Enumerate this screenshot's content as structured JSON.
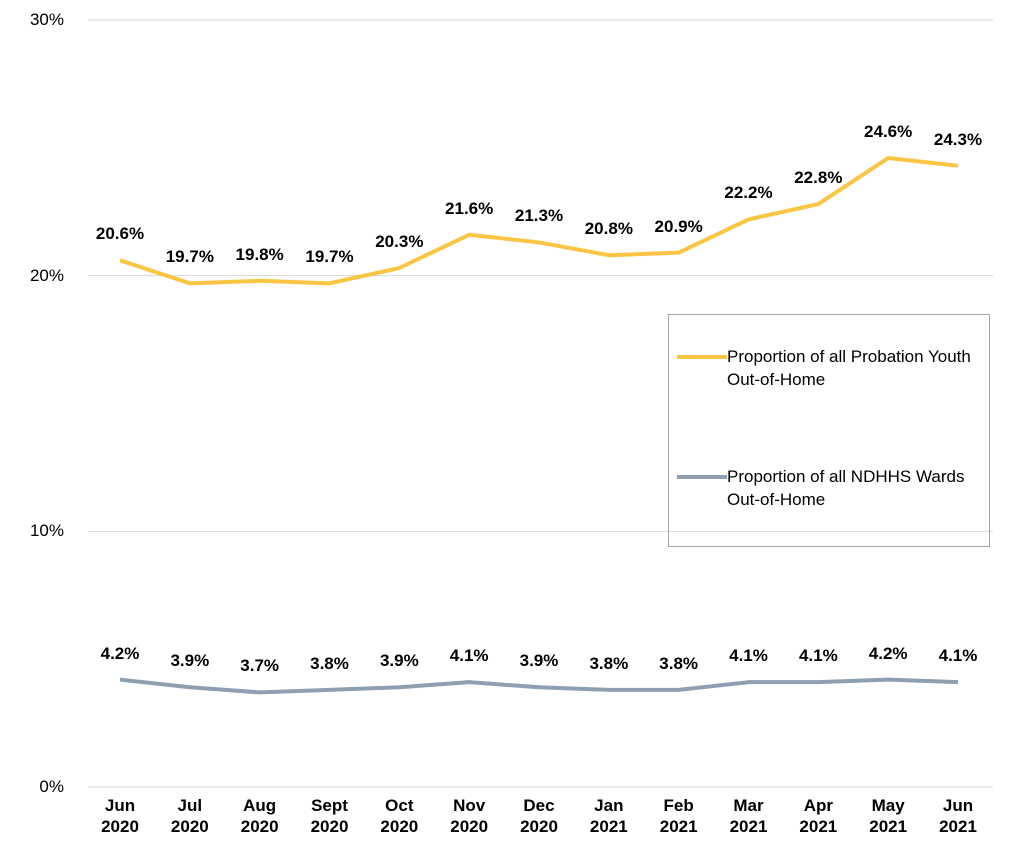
{
  "chart_data": {
    "type": "line",
    "categories": [
      "Jun 2020",
      "Jul 2020",
      "Aug 2020",
      "Sept 2020",
      "Oct 2020",
      "Nov 2020",
      "Dec 2020",
      "Jan 2021",
      "Feb 2021",
      "Mar 2021",
      "Apr 2021",
      "May 2021",
      "Jun 2021"
    ],
    "series": [
      {
        "name": "Proportion of all Probation Youth Out-of-Home",
        "color": "#f9c543",
        "values": [
          20.6,
          19.7,
          19.8,
          19.7,
          20.3,
          21.6,
          21.3,
          20.8,
          20.9,
          22.2,
          22.8,
          24.6,
          24.3
        ],
        "value_labels": [
          "20.6%",
          "19.7%",
          "19.8%",
          "19.7%",
          "20.3%",
          "21.6%",
          "21.3%",
          "20.8%",
          "20.9%",
          "22.2%",
          "22.8%",
          "24.6%",
          "24.3%"
        ]
      },
      {
        "name": "Proportion of all NDHHS Wards Out-of-Home",
        "color": "#8e9fb1",
        "values": [
          4.2,
          3.9,
          3.7,
          3.8,
          3.9,
          4.1,
          3.9,
          3.8,
          3.8,
          4.1,
          4.1,
          4.2,
          4.1
        ],
        "value_labels": [
          "4.2%",
          "3.9%",
          "3.7%",
          "3.8%",
          "3.9%",
          "4.1%",
          "3.9%",
          "3.8%",
          "3.8%",
          "4.1%",
          "4.1%",
          "4.2%",
          "4.1%"
        ]
      }
    ],
    "ylim": [
      0,
      30
    ],
    "yticks": [
      {
        "value": 0,
        "label": "0%"
      },
      {
        "value": 10,
        "label": "10%"
      },
      {
        "value": 20,
        "label": "20%"
      },
      {
        "value": 30,
        "label": "30%"
      }
    ],
    "grid": true,
    "legend": "right"
  }
}
